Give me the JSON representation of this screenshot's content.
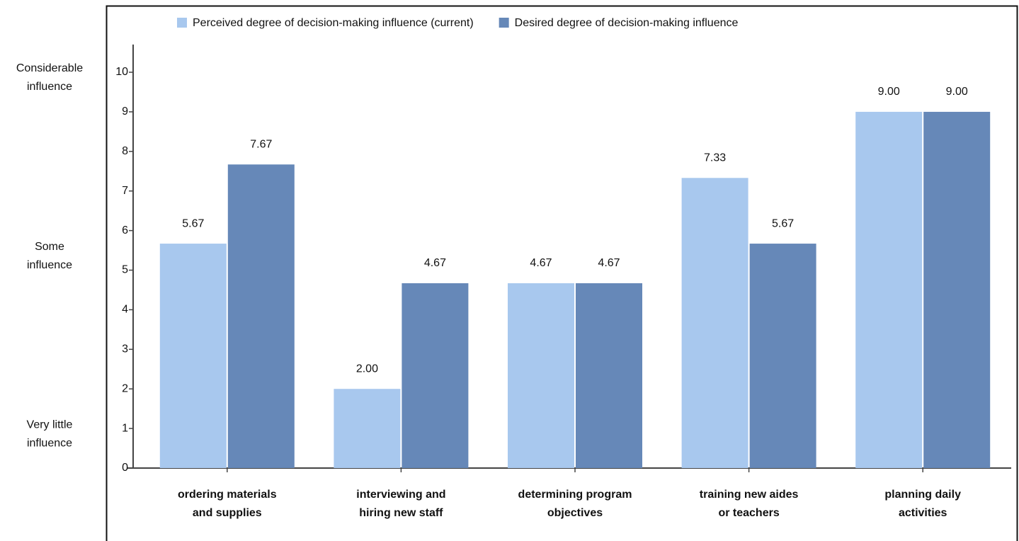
{
  "chart_data": {
    "type": "bar",
    "categories": [
      [
        "ordering materials",
        "and supplies"
      ],
      [
        "interviewing and",
        "hiring new staff"
      ],
      [
        "determining program",
        "objectives"
      ],
      [
        "training new aides",
        "or teachers"
      ],
      [
        "planning daily",
        "activities"
      ]
    ],
    "series": [
      {
        "name": "Perceived degree of decision-making influence (current)",
        "color": "#a8c8ee",
        "values": [
          5.67,
          2,
          4.67,
          7.33,
          9
        ],
        "value_labels": [
          "5.67",
          "2.00",
          "4.67",
          "7.33",
          "9.00"
        ]
      },
      {
        "name": "Desired degree of decision-making influence",
        "color": "#6688b8",
        "values": [
          7.67,
          4.67,
          4.67,
          5.67,
          9
        ],
        "value_labels": [
          "7.67",
          "4.67",
          "4.67",
          "5.67",
          "9.00"
        ]
      }
    ],
    "ylim": [
      0,
      10.7
    ],
    "yticks": [
      0,
      1,
      2,
      3,
      4,
      5,
      6,
      7,
      8,
      9,
      10
    ],
    "annotations": [
      {
        "value": 10,
        "lines": [
          "Considerable",
          "influence"
        ]
      },
      {
        "value": 5.5,
        "lines": [
          "Some",
          "influence"
        ]
      },
      {
        "value": 1,
        "lines": [
          "Very little",
          "influence"
        ]
      }
    ],
    "legend": "top"
  }
}
